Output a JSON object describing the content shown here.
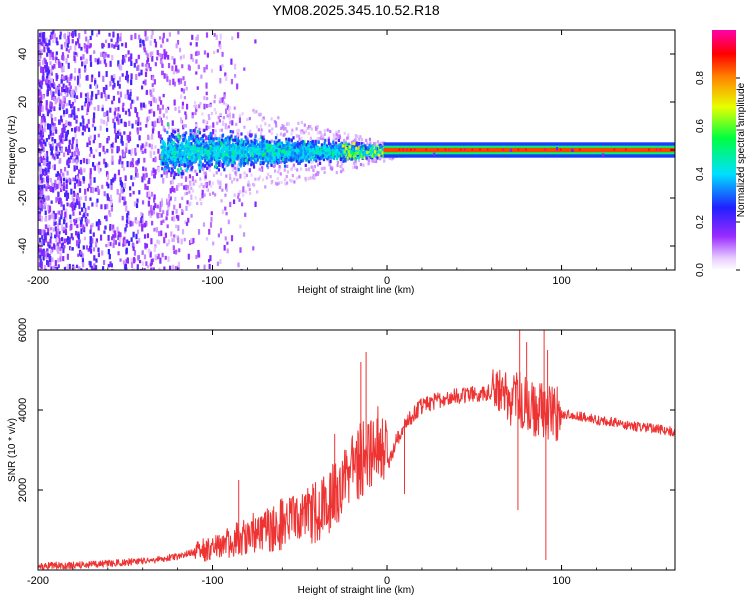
{
  "chart_data": [
    {
      "type": "heatmap",
      "title": "YM08.2025.345.10.52.R18",
      "xlabel": "Height of straight line (km)",
      "ylabel": "Frequency (Hz)",
      "xlim": [
        -200,
        165
      ],
      "ylim": [
        -50,
        50
      ],
      "x_ticks": [
        -200,
        -100,
        0,
        100
      ],
      "y_ticks": [
        -40,
        -20,
        0,
        20,
        40
      ],
      "colorbar": {
        "label": "Normalized spectral amplitude",
        "range": [
          0,
          1
        ],
        "ticks": [
          0.0,
          0.2,
          0.4,
          0.6,
          0.8
        ]
      },
      "description_features": {
        "noise_region_km": [
          -200,
          -110
        ],
        "spread_cluster_km": [
          -130,
          0
        ],
        "cluster_halfwidth_hz": 12,
        "coherent_line_start_km": 0,
        "coherent_line_freq_hz": 0,
        "coherent_line_amplitude": 0.95
      }
    },
    {
      "type": "line",
      "xlabel": "Height of straight line (km)",
      "ylabel": "SNR (10 * v/v)",
      "xlim": [
        -200,
        165
      ],
      "ylim": [
        0,
        6000
      ],
      "x_ticks": [
        -200,
        -100,
        0,
        100
      ],
      "y_ticks": [
        2000,
        4000,
        6000
      ],
      "series": [
        {
          "name": "SNR",
          "color": "#ee3333",
          "x": [
            -200,
            -180,
            -160,
            -140,
            -120,
            -110,
            -100,
            -90,
            -80,
            -70,
            -60,
            -50,
            -40,
            -30,
            -25,
            -20,
            -15,
            -10,
            -5,
            0,
            5,
            10,
            15,
            20,
            30,
            40,
            50,
            60,
            65,
            70,
            75,
            80,
            85,
            90,
            95,
            100,
            110,
            120,
            130,
            140,
            150,
            165
          ],
          "values": [
            100,
            120,
            160,
            220,
            330,
            450,
            560,
            700,
            850,
            1000,
            1150,
            1300,
            1500,
            1800,
            2200,
            2500,
            2800,
            3000,
            3100,
            2600,
            3200,
            3600,
            3900,
            4100,
            4250,
            4350,
            4400,
            4450,
            4300,
            4200,
            4300,
            4100,
            4000,
            3950,
            3900,
            3900,
            3850,
            3750,
            3700,
            3600,
            3550,
            3450
          ]
        }
      ],
      "spikes": [
        {
          "x": -85,
          "y": 2250
        },
        {
          "x": -30,
          "y": 3400
        },
        {
          "x": -15,
          "y": 5200
        },
        {
          "x": -12,
          "y": 5450
        },
        {
          "x": 10,
          "y": 1900
        },
        {
          "x": 76,
          "y": 6000
        },
        {
          "x": 80,
          "y": 5700
        },
        {
          "x": 90,
          "y": 6000
        },
        {
          "x": 92,
          "y": 5500
        },
        {
          "x": 75,
          "y": 1500
        },
        {
          "x": 91,
          "y": 250
        }
      ]
    }
  ]
}
